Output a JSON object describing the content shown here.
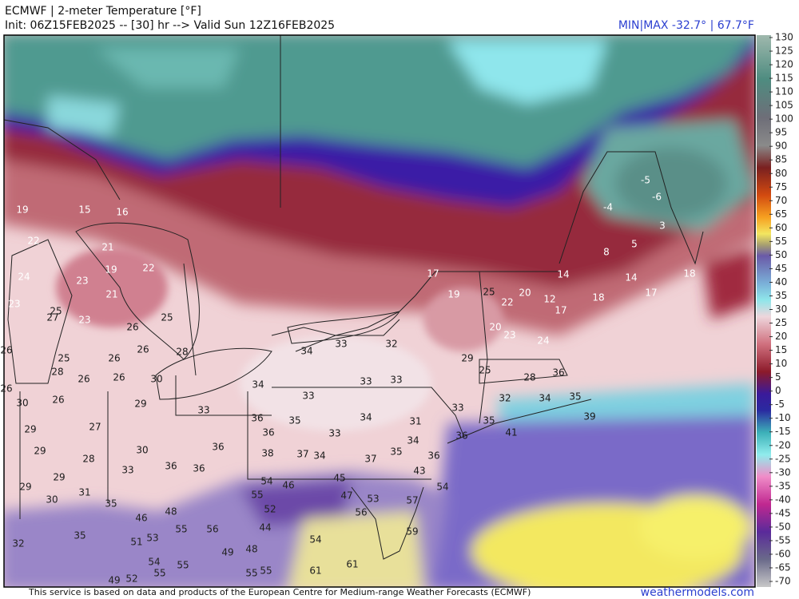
{
  "header": {
    "title": "ECMWF | 2-meter Temperature [°F]",
    "init": "Init: 06Z15FEB2025 -- [30] hr --> Valid Sun 12Z16FEB2025",
    "minmax": "MIN|MAX -32.7° | 67.7°F"
  },
  "colorbar": {
    "ticks": [
      130,
      125,
      120,
      115,
      110,
      105,
      100,
      95,
      90,
      85,
      80,
      75,
      70,
      65,
      60,
      55,
      50,
      45,
      40,
      35,
      30,
      25,
      20,
      15,
      10,
      5,
      0,
      -5,
      -10,
      -15,
      -20,
      -25,
      -30,
      -35,
      -40,
      -45,
      -50,
      -55,
      -60,
      -65,
      -70
    ]
  },
  "stations": [
    19,
    15,
    16,
    22,
    21,
    24,
    23,
    19,
    22,
    23,
    21,
    25,
    27,
    23,
    25,
    26,
    26,
    25,
    26,
    26,
    28,
    28,
    26,
    26,
    30,
    26,
    30,
    26,
    29,
    33,
    34,
    33,
    32,
    33,
    33,
    34,
    33,
    36,
    35,
    34,
    31,
    36,
    33,
    33,
    29,
    25,
    19,
    25,
    22,
    20,
    12,
    17,
    20,
    23,
    24,
    18,
    17,
    14,
    14,
    18,
    8,
    5,
    3,
    -4,
    -5,
    -6,
    17,
    28,
    36,
    32,
    34,
    35,
    35,
    41,
    39,
    36,
    34,
    29,
    27,
    29,
    28,
    30,
    33,
    36,
    36,
    36,
    38,
    37,
    34,
    37,
    35,
    36,
    43,
    54,
    29,
    29,
    31,
    30,
    35,
    54,
    46,
    45,
    55,
    47,
    53,
    57,
    52,
    56,
    59,
    48,
    46,
    55,
    56,
    44,
    51,
    53,
    35,
    32,
    54,
    49,
    48,
    54,
    55,
    55,
    55,
    55,
    61,
    61,
    49,
    52
  ],
  "footer": {
    "credit": "This service is based on data and products of the European Centre for Medium-range Weather Forecasts (ECMWF)",
    "site": "weathermodels.com"
  }
}
